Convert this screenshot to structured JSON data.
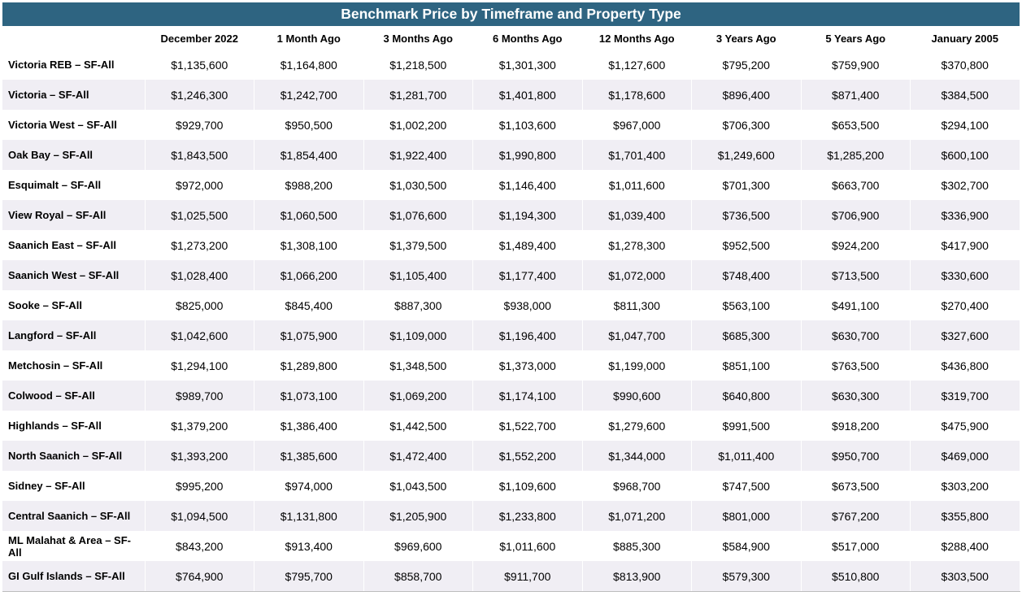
{
  "title": "Benchmark Price by Timeframe and Property Type",
  "columns": [
    "",
    "December 2022",
    "1 Month Ago",
    "3 Months Ago",
    "6 Months Ago",
    "12 Months Ago",
    "3 Years Ago",
    "5 Years Ago",
    "January 2005"
  ],
  "rows": [
    {
      "label": "Victoria REB – SF-All",
      "values": [
        "$1,135,600",
        "$1,164,800",
        "$1,218,500",
        "$1,301,300",
        "$1,127,600",
        "$795,200",
        "$759,900",
        "$370,800"
      ]
    },
    {
      "label": "Victoria – SF-All",
      "values": [
        "$1,246,300",
        "$1,242,700",
        "$1,281,700",
        "$1,401,800",
        "$1,178,600",
        "$896,400",
        "$871,400",
        "$384,500"
      ]
    },
    {
      "label": "Victoria West – SF-All",
      "values": [
        "$929,700",
        "$950,500",
        "$1,002,200",
        "$1,103,600",
        "$967,000",
        "$706,300",
        "$653,500",
        "$294,100"
      ]
    },
    {
      "label": "Oak Bay – SF-All",
      "values": [
        "$1,843,500",
        "$1,854,400",
        "$1,922,400",
        "$1,990,800",
        "$1,701,400",
        "$1,249,600",
        "$1,285,200",
        "$600,100"
      ]
    },
    {
      "label": "Esquimalt – SF-All",
      "values": [
        "$972,000",
        "$988,200",
        "$1,030,500",
        "$1,146,400",
        "$1,011,600",
        "$701,300",
        "$663,700",
        "$302,700"
      ]
    },
    {
      "label": "View Royal – SF-All",
      "values": [
        "$1,025,500",
        "$1,060,500",
        "$1,076,600",
        "$1,194,300",
        "$1,039,400",
        "$736,500",
        "$706,900",
        "$336,900"
      ]
    },
    {
      "label": "Saanich East – SF-All",
      "values": [
        "$1,273,200",
        "$1,308,100",
        "$1,379,500",
        "$1,489,400",
        "$1,278,300",
        "$952,500",
        "$924,200",
        "$417,900"
      ]
    },
    {
      "label": "Saanich West – SF-All",
      "values": [
        "$1,028,400",
        "$1,066,200",
        "$1,105,400",
        "$1,177,400",
        "$1,072,000",
        "$748,400",
        "$713,500",
        "$330,600"
      ]
    },
    {
      "label": "Sooke – SF-All",
      "values": [
        "$825,000",
        "$845,400",
        "$887,300",
        "$938,000",
        "$811,300",
        "$563,100",
        "$491,100",
        "$270,400"
      ]
    },
    {
      "label": "Langford – SF-All",
      "values": [
        "$1,042,600",
        "$1,075,900",
        "$1,109,000",
        "$1,196,400",
        "$1,047,700",
        "$685,300",
        "$630,700",
        "$327,600"
      ]
    },
    {
      "label": "Metchosin – SF-All",
      "values": [
        "$1,294,100",
        "$1,289,800",
        "$1,348,500",
        "$1,373,000",
        "$1,199,000",
        "$851,100",
        "$763,500",
        "$436,800"
      ]
    },
    {
      "label": "Colwood – SF-All",
      "values": [
        "$989,700",
        "$1,073,100",
        "$1,069,200",
        "$1,174,100",
        "$990,600",
        "$640,800",
        "$630,300",
        "$319,700"
      ]
    },
    {
      "label": "Highlands – SF-All",
      "values": [
        "$1,379,200",
        "$1,386,400",
        "$1,442,500",
        "$1,522,700",
        "$1,279,600",
        "$991,500",
        "$918,200",
        "$475,900"
      ]
    },
    {
      "label": "North Saanich – SF-All",
      "values": [
        "$1,393,200",
        "$1,385,600",
        "$1,472,400",
        "$1,552,200",
        "$1,344,000",
        "$1,011,400",
        "$950,700",
        "$469,000"
      ]
    },
    {
      "label": "Sidney – SF-All",
      "values": [
        "$995,200",
        "$974,000",
        "$1,043,500",
        "$1,109,600",
        "$968,700",
        "$747,500",
        "$673,500",
        "$303,200"
      ]
    },
    {
      "label": "Central Saanich – SF-All",
      "values": [
        "$1,094,500",
        "$1,131,800",
        "$1,205,900",
        "$1,233,800",
        "$1,071,200",
        "$801,000",
        "$767,200",
        "$355,800"
      ]
    },
    {
      "label": "ML Malahat & Area – SF-All",
      "values": [
        "$843,200",
        "$913,400",
        "$969,600",
        "$1,011,600",
        "$885,300",
        "$584,900",
        "$517,000",
        "$288,400"
      ]
    },
    {
      "label": "GI Gulf Islands – SF-All",
      "values": [
        "$764,900",
        "$795,700",
        "$858,700",
        "$911,700",
        "$813,900",
        "$579,300",
        "$510,800",
        "$303,500"
      ]
    }
  ],
  "colors": {
    "header_bg": "#2e6481",
    "stripe": "#f0eef4"
  }
}
